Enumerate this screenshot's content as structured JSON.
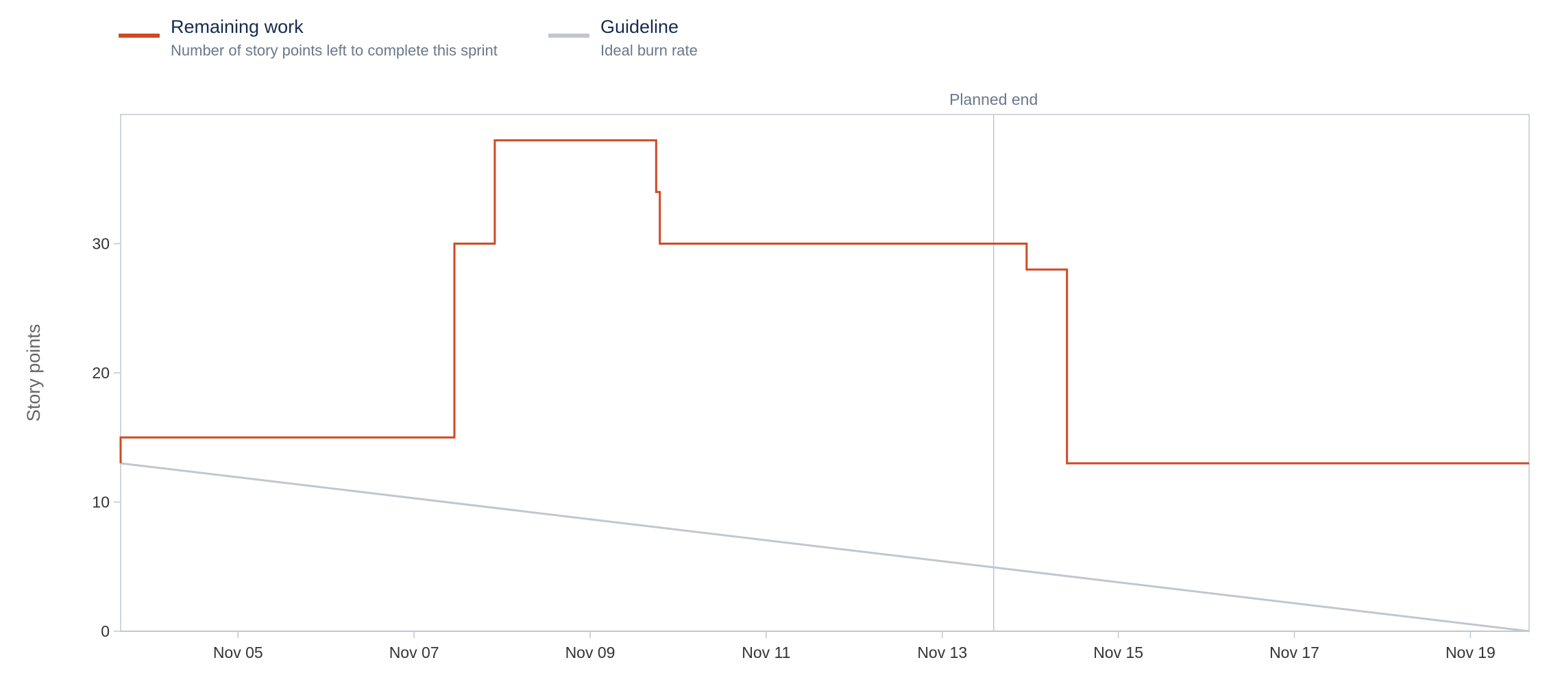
{
  "legend": [
    {
      "title": "Remaining work",
      "description": "Number of story points left to complete this sprint",
      "color": "#cf4a24"
    },
    {
      "title": "Guideline",
      "description": "Ideal burn rate",
      "color": "#c1c7d0"
    }
  ],
  "chart_data": {
    "type": "line",
    "ylabel": "Story points",
    "xlabel": "",
    "ylim": [
      0,
      40
    ],
    "xlim": [
      "2023-11-03 16:00",
      "2023-11-19 16:00"
    ],
    "yticks": [
      0,
      10,
      20,
      30
    ],
    "xticks": [
      "Nov 05",
      "Nov 07",
      "Nov 09",
      "Nov 11",
      "Nov 13",
      "Nov 15",
      "Nov 17",
      "Nov 19"
    ],
    "xtick_dates": [
      "2023-11-05",
      "2023-11-07",
      "2023-11-09",
      "2023-11-11",
      "2023-11-13",
      "2023-11-15",
      "2023-11-17",
      "2023-11-19"
    ],
    "grid": false,
    "legend_position": "top-left",
    "annotations": [
      {
        "label": "Planned end",
        "x": "2023-11-13 14:00",
        "color": "#c1c7d0"
      }
    ],
    "series": [
      {
        "name": "Remaining work",
        "step": true,
        "color": "#cf4a24",
        "points": [
          {
            "x": "2023-11-03 16:00",
            "y": 13
          },
          {
            "x": "2023-11-03 16:00",
            "y": 15
          },
          {
            "x": "2023-11-07 11:00",
            "y": 15
          },
          {
            "x": "2023-11-07 11:00",
            "y": 30
          },
          {
            "x": "2023-11-07 22:00",
            "y": 30
          },
          {
            "x": "2023-11-07 22:00",
            "y": 38
          },
          {
            "x": "2023-11-09 18:00",
            "y": 38
          },
          {
            "x": "2023-11-09 18:00",
            "y": 34
          },
          {
            "x": "2023-11-09 19:00",
            "y": 34
          },
          {
            "x": "2023-11-09 19:00",
            "y": 30
          },
          {
            "x": "2023-11-13 23:00",
            "y": 30
          },
          {
            "x": "2023-11-13 23:00",
            "y": 28
          },
          {
            "x": "2023-11-14 10:00",
            "y": 28
          },
          {
            "x": "2023-11-14 10:00",
            "y": 13
          },
          {
            "x": "2023-11-19 16:00",
            "y": 13
          }
        ]
      },
      {
        "name": "Guideline",
        "step": false,
        "color": "#c1c7d0",
        "points": [
          {
            "x": "2023-11-03 16:00",
            "y": 13
          },
          {
            "x": "2023-11-19 16:00",
            "y": 0
          }
        ]
      }
    ]
  }
}
